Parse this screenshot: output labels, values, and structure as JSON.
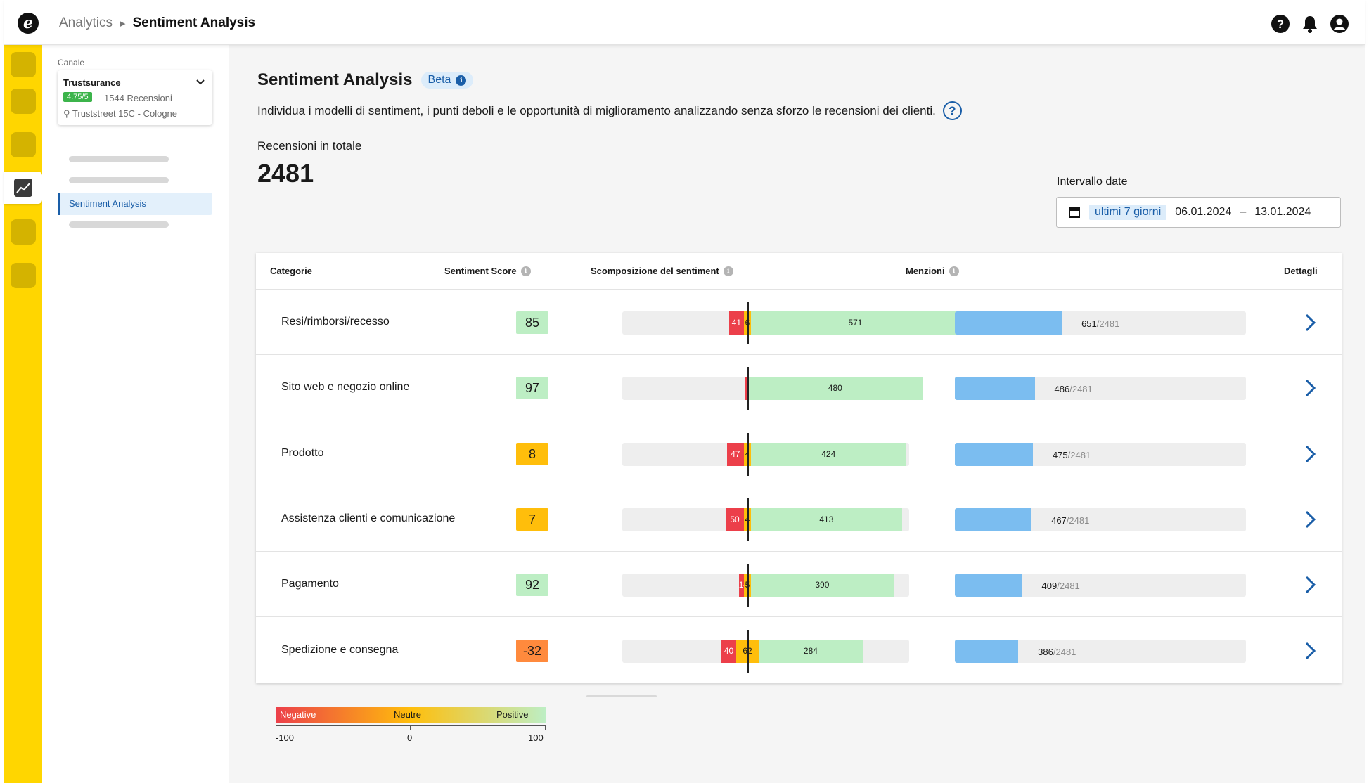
{
  "breadcrumb": {
    "parent": "Analytics",
    "current": "Sentiment Analysis"
  },
  "logo_letter": "e",
  "top_icons": [
    "help-icon",
    "bell-icon",
    "user-icon"
  ],
  "nav": {
    "canale_label": "Canale",
    "channel": {
      "name": "Trustsurance",
      "rating": "4.75/5",
      "reviews": "1544 Recensioni",
      "address": "Truststreet 15C - Cologne"
    },
    "active_item": "Sentiment Analysis"
  },
  "page": {
    "title": "Sentiment Analysis",
    "badge": "Beta",
    "subtitle": "Individua i modelli di sentiment, i punti deboli e le opportunità di miglioramento analizzando senza sforzo le recensioni dei clienti.",
    "total_label": "Recensioni in totale",
    "total_value": "2481",
    "date_label": "Intervallo date",
    "date_preset": "ultimi 7 giorni",
    "date_from": "06.01.2024",
    "date_sep": "–",
    "date_to": "13.01.2024"
  },
  "table": {
    "headers": {
      "categories": "Categorie",
      "score": "Sentiment Score",
      "breakdown": "Scomposizione del sentiment",
      "mentions": "Menzioni",
      "details": "Dettagli"
    },
    "total_mentions": 2481,
    "rows": [
      {
        "category": "Resi/rimborsi/recesso",
        "score": 85,
        "negative": 41,
        "neutral": 6,
        "positive": 571,
        "mentions": 651
      },
      {
        "category": "Sito web e negozio online",
        "score": 97,
        "negative": 2,
        "neutral": 0,
        "positive": 480,
        "mentions": 486
      },
      {
        "category": "Prodotto",
        "score": 8,
        "negative": 47,
        "neutral": 4,
        "positive": 424,
        "mentions": 475
      },
      {
        "category": "Assistenza clienti e comunicazione",
        "score": 7,
        "negative": 50,
        "neutral": 4,
        "positive": 413,
        "mentions": 467
      },
      {
        "category": "Pagamento",
        "score": 92,
        "negative": 14,
        "neutral": 5,
        "positive": 390,
        "mentions": 409
      },
      {
        "category": "Spedizione e consegna",
        "score": -32,
        "negative": 40,
        "neutral": 62,
        "positive": 284,
        "mentions": 386
      }
    ]
  },
  "legend": {
    "negative": "Negative",
    "neutral": "Neutre",
    "positive": "Positive",
    "min": "-100",
    "mid": "0",
    "max": "100"
  },
  "colors": {
    "negative": "#ec3f4a",
    "neutral": "#ffbe0b",
    "positive": "#bdeec4",
    "score_positive": "#bdeec4",
    "score_neutral": "#ffbe0b",
    "score_negative": "#ff8a3d",
    "mentions": "#7bbdf0",
    "accent": "#1a5ea8",
    "rail": "#ffd600"
  }
}
